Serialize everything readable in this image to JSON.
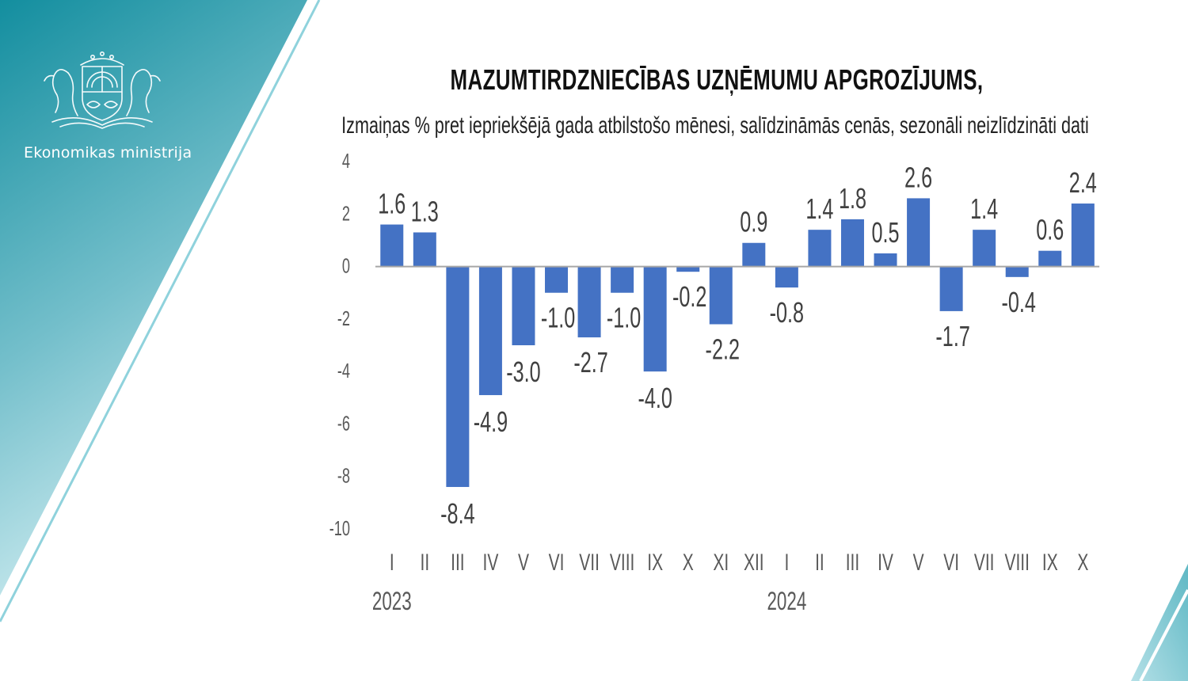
{
  "branding": {
    "ministry_name": "Ekonomikas ministrija",
    "logo_icon": "latvia-coat-of-arms-icon",
    "colors": {
      "teal_dark": "#138e9f",
      "teal_light": "#b8e2e9",
      "bar": "#4472c4"
    }
  },
  "chart_data": {
    "type": "bar",
    "title": "MAZUMTIRDZNIECĪBAS UZŅĒMUMU APGROZĪJUMS,",
    "subtitle": "Izmaiņas % pret iepriekšējā gada atbilstošo mēnesi, salīdzināmās cenās, sezonāli neizlīdzināti dati",
    "categories": [
      "I",
      "II",
      "III",
      "IV",
      "V",
      "VI",
      "VII",
      "VIII",
      "IX",
      "X",
      "XI",
      "XII",
      "I",
      "II",
      "III",
      "IV",
      "V",
      "VI",
      "VII",
      "VIII",
      "IX",
      "X"
    ],
    "values": [
      1.6,
      1.3,
      -8.4,
      -4.9,
      -3.0,
      -1.0,
      -2.7,
      -1.0,
      -4.0,
      -0.2,
      -2.2,
      0.9,
      -0.8,
      1.4,
      1.8,
      0.5,
      2.6,
      -1.7,
      1.4,
      -0.4,
      0.6,
      2.4
    ],
    "data_labels": [
      "1.6",
      "1.3",
      "-8.4",
      "-4.9",
      "-3.0",
      "-1.0",
      "-2.7",
      "-1.0",
      "-4.0",
      "-0.2",
      "-2.2",
      "0.9",
      "-0.8",
      "1.4",
      "1.8",
      "0.5",
      "2.6",
      "-1.7",
      "1.4",
      "-0.4",
      "0.6",
      "2.4"
    ],
    "year_labels": [
      {
        "year": "2023",
        "at_index": 0
      },
      {
        "year": "2024",
        "at_index": 12
      }
    ],
    "ylim": [
      -10,
      4
    ],
    "yticks": [
      4,
      2,
      0,
      -2,
      -4,
      -6,
      -8,
      -10
    ],
    "xlabel": "",
    "ylabel": "",
    "grid": false,
    "legend": "none"
  }
}
